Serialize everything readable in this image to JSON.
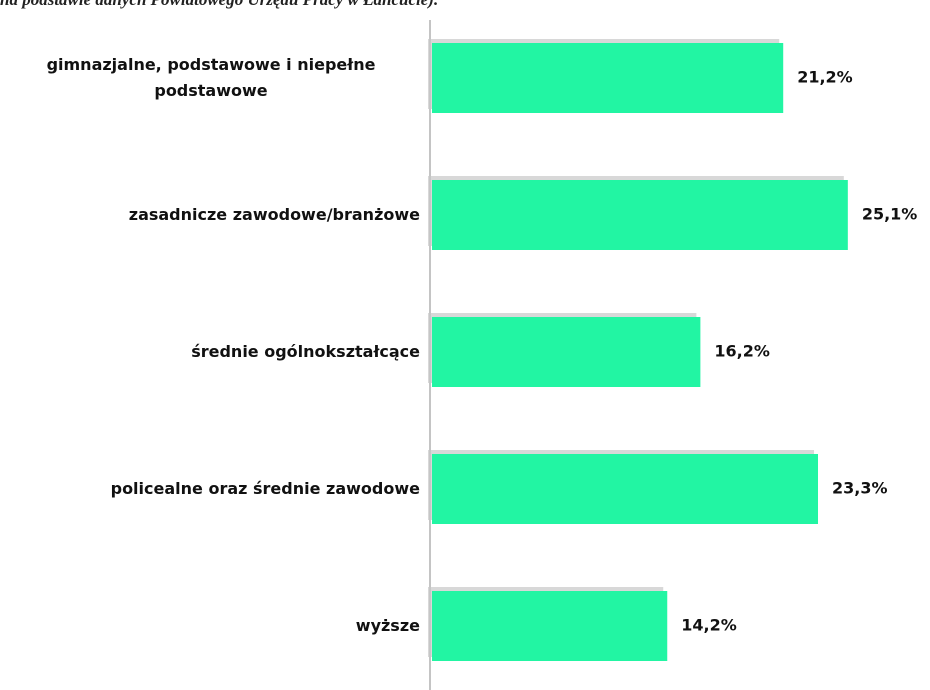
{
  "chart_data": {
    "type": "barh",
    "caption": "na podstawie danych Powiatowego Urzędu Pracy w Łańcucie).",
    "categories": [
      "gimnazjalne, podstawowe i niepełne podstawowe",
      "zasadnicze zawodowe/branżowe",
      "średnie ogólnokształcące",
      "policealne oraz średnie zawodowe",
      "wyższe"
    ],
    "values": [
      21.2,
      25.1,
      16.2,
      23.3,
      14.2
    ],
    "value_labels": [
      "21,2%",
      "25,1%",
      "16,2%",
      "23,3%",
      "14,2%"
    ],
    "color": "#22f5a3",
    "xlim": [
      0,
      30
    ]
  }
}
